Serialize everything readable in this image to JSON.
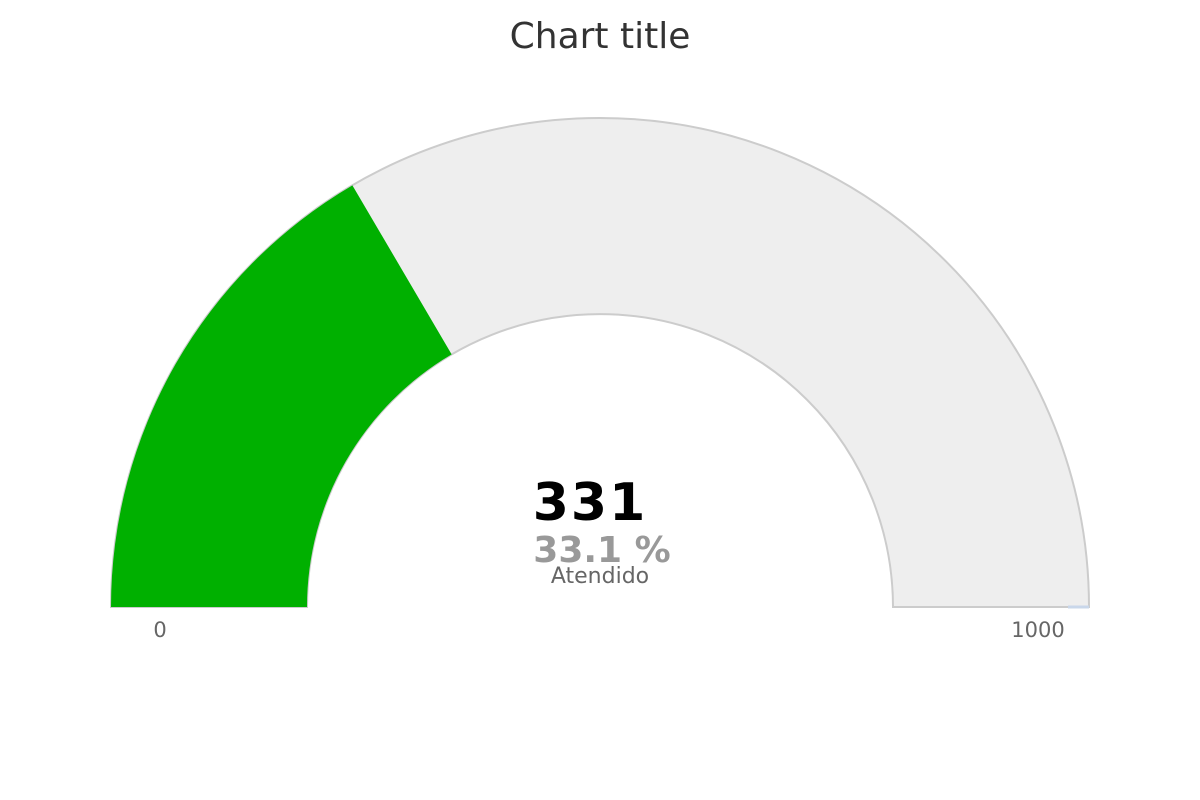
{
  "chart_data": {
    "type": "gauge",
    "title": "Chart title",
    "min": 0,
    "max": 1000,
    "value": 331,
    "value_text": "331",
    "percent_text": "33.1 %",
    "series_label": "Atendido",
    "min_label": "0",
    "max_label": "1000",
    "colors": {
      "fill": "#00b000",
      "track": "#eeeeee",
      "track_border": "#cccccc"
    }
  }
}
